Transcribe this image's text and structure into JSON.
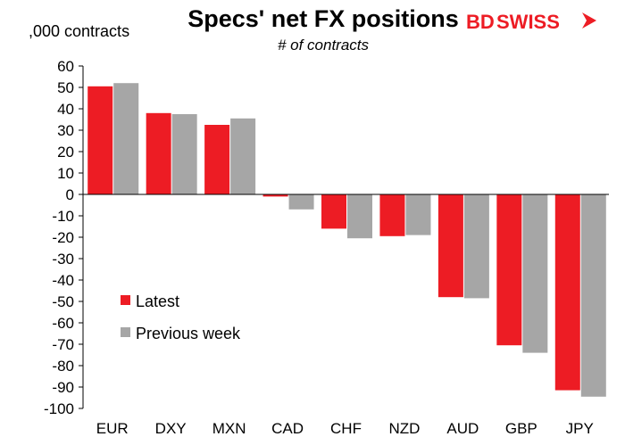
{
  "chart_data": {
    "type": "bar",
    "title": "Specs' net FX positions",
    "subtitle": "# of contracts",
    "ylabel": ",000 contracts",
    "xlabel": "",
    "categories": [
      "EUR",
      "DXY",
      "MXN",
      "CAD",
      "CHF",
      "NZD",
      "AUD",
      "GBP",
      "JPY"
    ],
    "series": [
      {
        "name": "Latest",
        "color": "#ed1c24",
        "values": [
          50.5,
          38,
          32.5,
          -1,
          -16,
          -19.5,
          -48,
          -70.5,
          -91.5
        ]
      },
      {
        "name": "Previous week",
        "color": "#a6a6a6",
        "values": [
          52,
          37.5,
          35.5,
          -7,
          -20.5,
          -19,
          -48.5,
          -74,
          -94.5
        ]
      }
    ],
    "ylim": [
      -100,
      60
    ],
    "yticks": [
      60,
      50,
      40,
      30,
      20,
      10,
      0,
      -10,
      -20,
      -30,
      -40,
      -50,
      -60,
      -70,
      -80,
      -90,
      -100
    ],
    "grid": false,
    "legend_position": "lower-left"
  },
  "branding": {
    "logo_text_bd": "BD",
    "logo_text_swiss": "SWISS"
  }
}
